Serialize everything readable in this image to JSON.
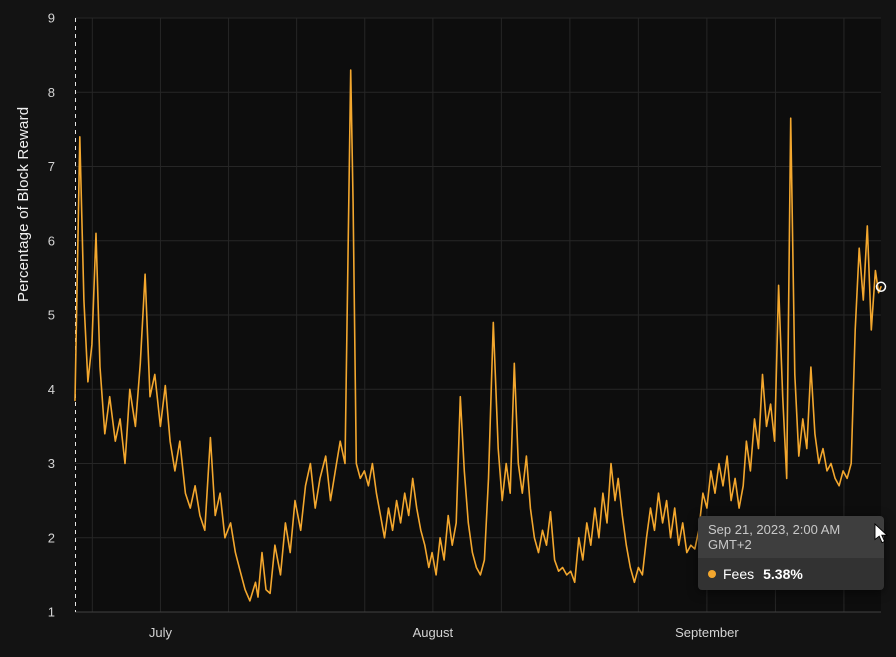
{
  "tooltip": {
    "timestamp": "Sep 21, 2023, 2:00 AM GMT+2",
    "series_label": "Fees",
    "value": "5.38%"
  },
  "chart_data": {
    "type": "line",
    "title": "",
    "xlabel": "",
    "ylabel": "Percentage of Block Reward",
    "ylim": [
      1,
      9
    ],
    "y_ticks": [
      1,
      2,
      3,
      4,
      5,
      6,
      7,
      8,
      9
    ],
    "x_ticks": [
      {
        "f": 0.106,
        "label": "July"
      },
      {
        "f": 0.444,
        "label": "August"
      },
      {
        "f": 0.784,
        "label": "September"
      }
    ],
    "v_gridlines": [
      0.0215,
      0.106,
      0.1905,
      0.275,
      0.3595,
      0.444,
      0.529,
      0.614,
      0.699,
      0.784,
      0.869,
      0.954
    ],
    "grid": true,
    "legend": "none",
    "crosshair_f": 0.0,
    "hover_point": {
      "f": 1.0,
      "value": 5.38
    },
    "series": [
      {
        "name": "Fees",
        "unit": "%",
        "points": [
          [
            0.0,
            3.85
          ],
          [
            0.006,
            7.4
          ],
          [
            0.011,
            5.2
          ],
          [
            0.016,
            4.1
          ],
          [
            0.021,
            4.6
          ],
          [
            0.026,
            6.1
          ],
          [
            0.031,
            4.3
          ],
          [
            0.037,
            3.4
          ],
          [
            0.043,
            3.9
          ],
          [
            0.05,
            3.3
          ],
          [
            0.056,
            3.6
          ],
          [
            0.062,
            3.0
          ],
          [
            0.068,
            4.0
          ],
          [
            0.075,
            3.5
          ],
          [
            0.081,
            4.35
          ],
          [
            0.087,
            5.55
          ],
          [
            0.093,
            3.9
          ],
          [
            0.099,
            4.2
          ],
          [
            0.106,
            3.5
          ],
          [
            0.112,
            4.05
          ],
          [
            0.118,
            3.3
          ],
          [
            0.124,
            2.9
          ],
          [
            0.13,
            3.3
          ],
          [
            0.137,
            2.6
          ],
          [
            0.143,
            2.4
          ],
          [
            0.149,
            2.7
          ],
          [
            0.155,
            2.3
          ],
          [
            0.161,
            2.1
          ],
          [
            0.168,
            3.35
          ],
          [
            0.174,
            2.3
          ],
          [
            0.18,
            2.6
          ],
          [
            0.186,
            2.0
          ],
          [
            0.193,
            2.2
          ],
          [
            0.199,
            1.8
          ],
          [
            0.205,
            1.55
          ],
          [
            0.211,
            1.3
          ],
          [
            0.217,
            1.15
          ],
          [
            0.224,
            1.4
          ],
          [
            0.227,
            1.2
          ],
          [
            0.232,
            1.8
          ],
          [
            0.237,
            1.3
          ],
          [
            0.242,
            1.25
          ],
          [
            0.248,
            1.9
          ],
          [
            0.255,
            1.5
          ],
          [
            0.261,
            2.2
          ],
          [
            0.267,
            1.8
          ],
          [
            0.273,
            2.5
          ],
          [
            0.28,
            2.1
          ],
          [
            0.286,
            2.7
          ],
          [
            0.292,
            3.0
          ],
          [
            0.298,
            2.4
          ],
          [
            0.304,
            2.8
          ],
          [
            0.311,
            3.1
          ],
          [
            0.317,
            2.5
          ],
          [
            0.323,
            2.9
          ],
          [
            0.329,
            3.3
          ],
          [
            0.335,
            3.0
          ],
          [
            0.342,
            8.3
          ],
          [
            0.345,
            6.5
          ],
          [
            0.349,
            3.0
          ],
          [
            0.354,
            2.8
          ],
          [
            0.359,
            2.9
          ],
          [
            0.364,
            2.7
          ],
          [
            0.369,
            3.0
          ],
          [
            0.374,
            2.6
          ],
          [
            0.379,
            2.3
          ],
          [
            0.384,
            2.0
          ],
          [
            0.389,
            2.4
          ],
          [
            0.394,
            2.1
          ],
          [
            0.399,
            2.5
          ],
          [
            0.404,
            2.2
          ],
          [
            0.409,
            2.6
          ],
          [
            0.414,
            2.3
          ],
          [
            0.419,
            2.8
          ],
          [
            0.424,
            2.4
          ],
          [
            0.429,
            2.1
          ],
          [
            0.434,
            1.9
          ],
          [
            0.439,
            1.6
          ],
          [
            0.443,
            1.8
          ],
          [
            0.448,
            1.5
          ],
          [
            0.453,
            2.0
          ],
          [
            0.458,
            1.7
          ],
          [
            0.463,
            2.3
          ],
          [
            0.468,
            1.9
          ],
          [
            0.473,
            2.2
          ],
          [
            0.478,
            3.9
          ],
          [
            0.483,
            2.9
          ],
          [
            0.488,
            2.2
          ],
          [
            0.493,
            1.8
          ],
          [
            0.498,
            1.6
          ],
          [
            0.503,
            1.5
          ],
          [
            0.508,
            1.7
          ],
          [
            0.513,
            2.8
          ],
          [
            0.519,
            4.9
          ],
          [
            0.525,
            3.2
          ],
          [
            0.53,
            2.5
          ],
          [
            0.535,
            3.0
          ],
          [
            0.54,
            2.6
          ],
          [
            0.545,
            4.35
          ],
          [
            0.55,
            3.0
          ],
          [
            0.555,
            2.6
          ],
          [
            0.56,
            3.1
          ],
          [
            0.565,
            2.4
          ],
          [
            0.57,
            2.0
          ],
          [
            0.575,
            1.8
          ],
          [
            0.58,
            2.1
          ],
          [
            0.585,
            1.9
          ],
          [
            0.59,
            2.35
          ],
          [
            0.595,
            1.7
          ],
          [
            0.6,
            1.55
          ],
          [
            0.605,
            1.6
          ],
          [
            0.61,
            1.5
          ],
          [
            0.615,
            1.55
          ],
          [
            0.62,
            1.4
          ],
          [
            0.625,
            2.0
          ],
          [
            0.63,
            1.7
          ],
          [
            0.635,
            2.2
          ],
          [
            0.64,
            1.9
          ],
          [
            0.645,
            2.4
          ],
          [
            0.65,
            2.0
          ],
          [
            0.655,
            2.6
          ],
          [
            0.66,
            2.2
          ],
          [
            0.665,
            3.0
          ],
          [
            0.67,
            2.5
          ],
          [
            0.674,
            2.8
          ],
          [
            0.679,
            2.3
          ],
          [
            0.684,
            1.9
          ],
          [
            0.689,
            1.6
          ],
          [
            0.694,
            1.4
          ],
          [
            0.699,
            1.6
          ],
          [
            0.704,
            1.5
          ],
          [
            0.709,
            2.0
          ],
          [
            0.714,
            2.4
          ],
          [
            0.719,
            2.1
          ],
          [
            0.724,
            2.6
          ],
          [
            0.729,
            2.2
          ],
          [
            0.734,
            2.5
          ],
          [
            0.739,
            2.0
          ],
          [
            0.744,
            2.4
          ],
          [
            0.749,
            1.9
          ],
          [
            0.754,
            2.2
          ],
          [
            0.759,
            1.8
          ],
          [
            0.764,
            1.9
          ],
          [
            0.769,
            1.85
          ],
          [
            0.774,
            2.1
          ],
          [
            0.779,
            2.6
          ],
          [
            0.784,
            2.4
          ],
          [
            0.789,
            2.9
          ],
          [
            0.794,
            2.6
          ],
          [
            0.799,
            3.0
          ],
          [
            0.804,
            2.7
          ],
          [
            0.809,
            3.1
          ],
          [
            0.814,
            2.5
          ],
          [
            0.819,
            2.8
          ],
          [
            0.824,
            2.4
          ],
          [
            0.829,
            2.7
          ],
          [
            0.833,
            3.3
          ],
          [
            0.838,
            2.9
          ],
          [
            0.843,
            3.6
          ],
          [
            0.848,
            3.2
          ],
          [
            0.853,
            4.2
          ],
          [
            0.858,
            3.5
          ],
          [
            0.863,
            3.8
          ],
          [
            0.868,
            3.3
          ],
          [
            0.873,
            5.4
          ],
          [
            0.878,
            3.9
          ],
          [
            0.883,
            2.8
          ],
          [
            0.888,
            7.65
          ],
          [
            0.893,
            4.2
          ],
          [
            0.898,
            3.1
          ],
          [
            0.903,
            3.6
          ],
          [
            0.908,
            3.2
          ],
          [
            0.913,
            4.3
          ],
          [
            0.918,
            3.4
          ],
          [
            0.923,
            3.0
          ],
          [
            0.928,
            3.2
          ],
          [
            0.933,
            2.9
          ],
          [
            0.938,
            3.0
          ],
          [
            0.943,
            2.8
          ],
          [
            0.948,
            2.7
          ],
          [
            0.953,
            2.9
          ],
          [
            0.958,
            2.8
          ],
          [
            0.963,
            3.0
          ],
          [
            0.968,
            4.8
          ],
          [
            0.973,
            5.9
          ],
          [
            0.978,
            5.2
          ],
          [
            0.983,
            6.2
          ],
          [
            0.988,
            4.8
          ],
          [
            0.993,
            5.6
          ],
          [
            0.997,
            5.3
          ],
          [
            1.0,
            5.38
          ]
        ]
      }
    ],
    "colors": {
      "background": "#131313",
      "plot_background": "#0d0d0d",
      "grid": "#262626",
      "axis": "#414141",
      "tick_text": "#d4d4d4",
      "line": "#f3a72e",
      "crosshair": "#e6e6e6",
      "marker_stroke": "#ffffff",
      "tooltip_bg": "#323232",
      "tooltip_header_bg": "#3e3e3e",
      "tooltip_header_text": "#c9c9c9",
      "tooltip_text": "#ffffff"
    }
  }
}
